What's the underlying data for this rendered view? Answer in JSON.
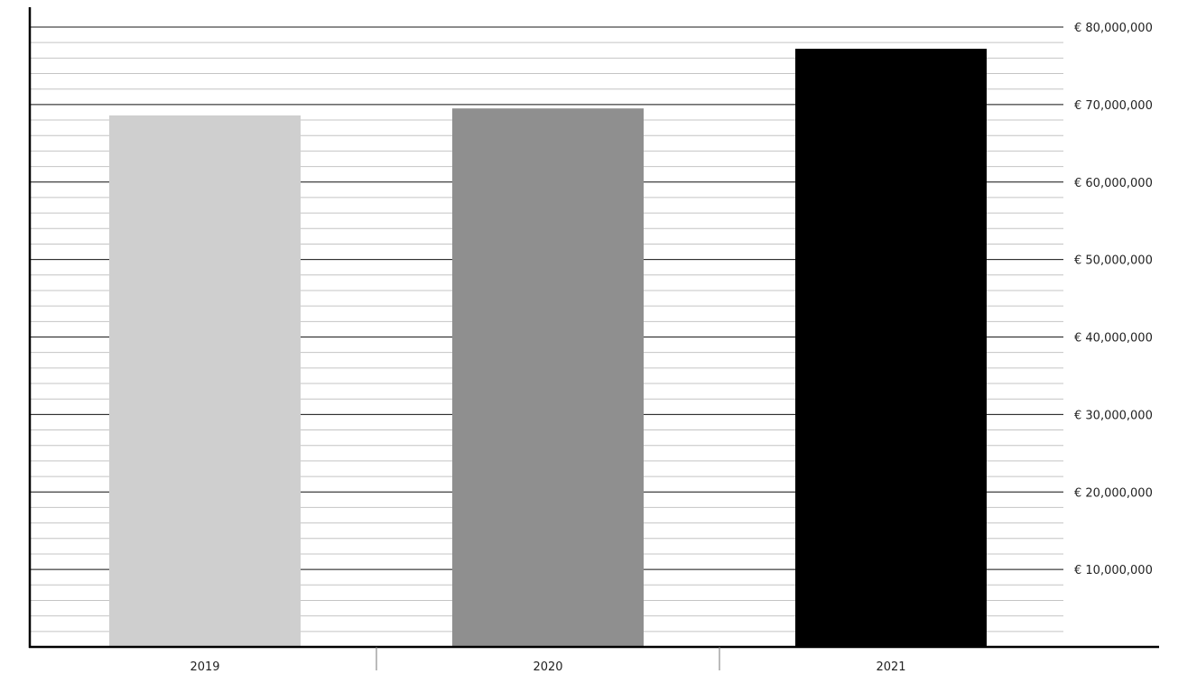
{
  "chart_data": {
    "type": "bar",
    "title": "",
    "xlabel": "",
    "ylabel": "",
    "categories": [
      "2019",
      "2020",
      "2021"
    ],
    "values": [
      68600000,
      69500000,
      77200000
    ],
    "bar_colors": [
      "#cfcfcf",
      "#8f8f8f",
      "#000000"
    ],
    "ylim": [
      0,
      80000000
    ],
    "y_axis_position": "right",
    "yticks": [
      {
        "value": 10000000,
        "label": "€ 10,000,000"
      },
      {
        "value": 20000000,
        "label": "€ 20,000,000"
      },
      {
        "value": 30000000,
        "label": "€ 30,000,000"
      },
      {
        "value": 40000000,
        "label": "€ 40,000,000"
      },
      {
        "value": 50000000,
        "label": "€ 50,000,000"
      },
      {
        "value": 60000000,
        "label": "€ 60,000,000"
      },
      {
        "value": 70000000,
        "label": "€ 70,000,000"
      },
      {
        "value": 80000000,
        "label": "€ 80,000,000"
      }
    ],
    "minor_grid_step": 2000000,
    "grid": true,
    "legend": "none"
  }
}
